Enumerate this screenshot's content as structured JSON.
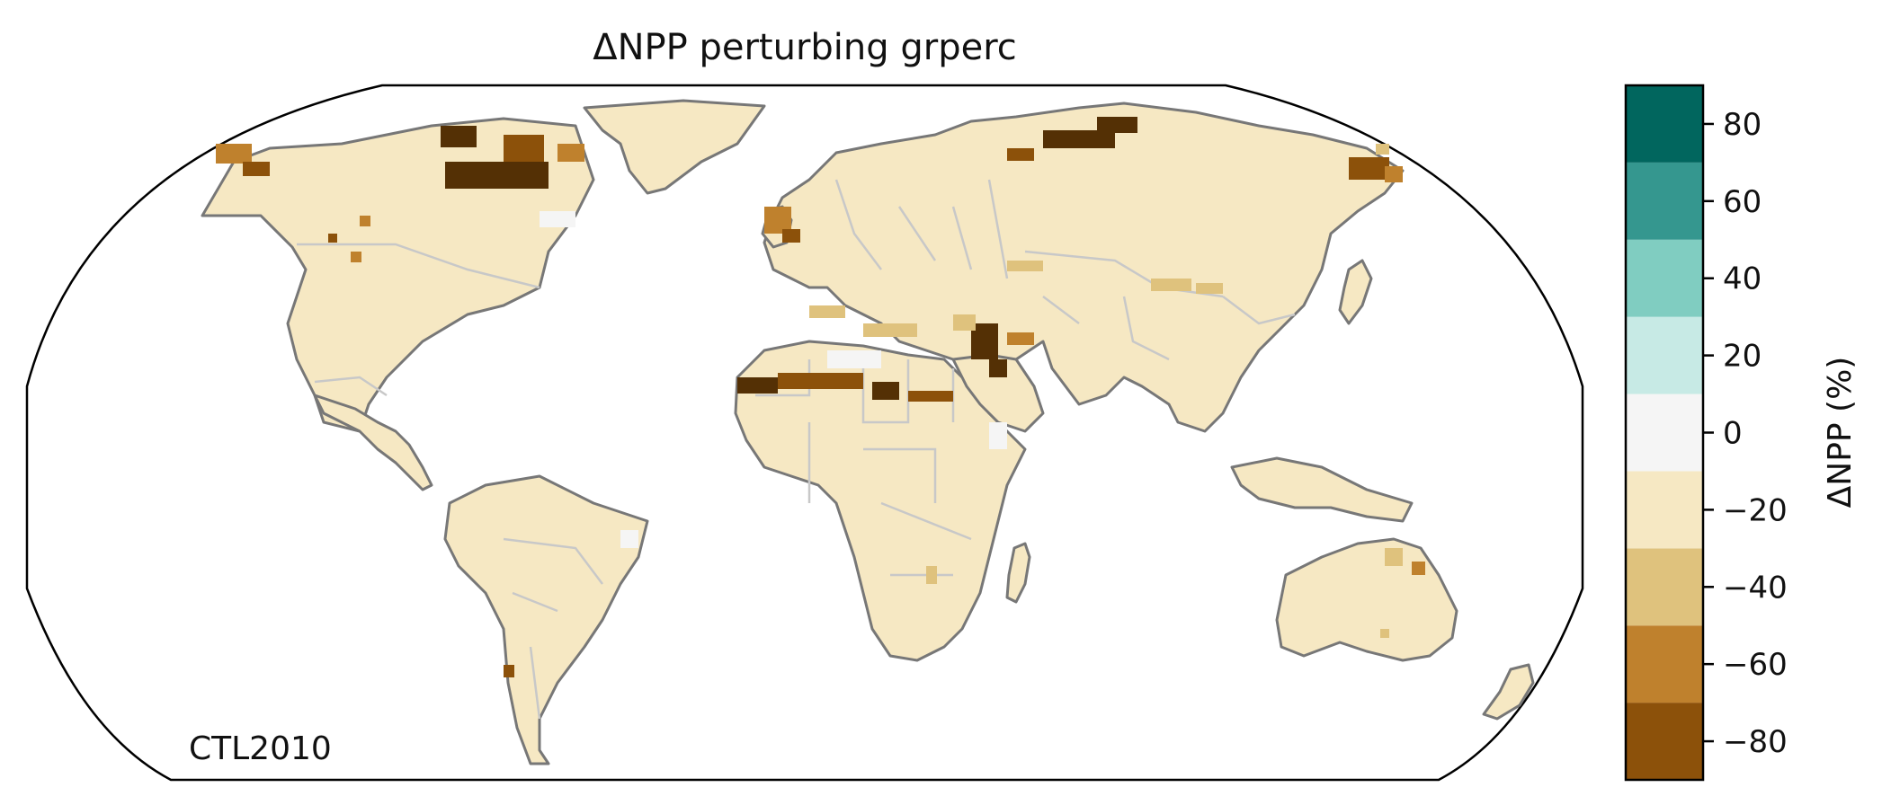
{
  "title": "ΔNPP perturbing grperc",
  "annotation": "CTL2010",
  "colorbar": {
    "label": "ΔNPP (%)",
    "range": [
      -90,
      90
    ],
    "bin_edges": [
      -90,
      -70,
      -50,
      -30,
      -10,
      10,
      30,
      50,
      70,
      90
    ],
    "bin_colors": [
      "#543005",
      "#8c510a",
      "#bf812d",
      "#dfc27d",
      "#f6e8c3",
      "#f5f5f5",
      "#c7eae5",
      "#80cdc1",
      "#35978f",
      "#01665e",
      "#003c30"
    ],
    "ticks": [
      -80,
      -60,
      -40,
      -20,
      0,
      20,
      40,
      60,
      80
    ],
    "tick_labels": [
      "−80",
      "−60",
      "−40",
      "−20",
      "0",
      "20",
      "40",
      "60",
      "80"
    ]
  },
  "map": {
    "projection": "Robinson",
    "land_value_typical": -15,
    "coastline_color": "#777777",
    "border_color": "#c8c8c8",
    "frame_color": "#000000"
  }
}
